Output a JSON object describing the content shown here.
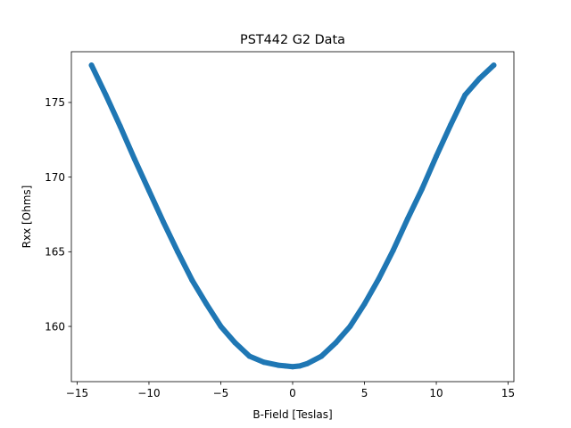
{
  "chart_data": {
    "type": "line",
    "title": "PST442 G2 Data",
    "xlabel": "B-Field [Teslas]",
    "ylabel": "Rxx [Ohms]",
    "xlim": [
      -15.4,
      15.4
    ],
    "ylim": [
      156.3,
      178.4
    ],
    "xticks": [
      -15,
      -10,
      -5,
      0,
      5,
      10,
      15
    ],
    "yticks": [
      160,
      165,
      170,
      175
    ],
    "grid": false,
    "legend": "none",
    "series": [
      {
        "color": "#1f77b4",
        "x": [
          -14,
          -13,
          -12,
          -11,
          -10,
          -9,
          -8,
          -7,
          -6,
          -5,
          -4,
          -3,
          -2,
          -1,
          -0.5,
          0,
          0.5,
          1,
          2,
          3,
          4,
          5,
          6,
          7,
          8,
          9,
          10,
          11,
          12,
          13,
          14
        ],
        "y": [
          177.5,
          175.5,
          173.4,
          171.2,
          169.1,
          167.0,
          165.0,
          163.1,
          161.5,
          160.0,
          158.9,
          158.0,
          157.6,
          157.4,
          157.35,
          157.3,
          157.35,
          157.5,
          158.0,
          158.9,
          160.0,
          161.5,
          163.2,
          165.1,
          167.2,
          169.2,
          171.4,
          173.5,
          175.5,
          176.6,
          177.5
        ]
      }
    ]
  }
}
